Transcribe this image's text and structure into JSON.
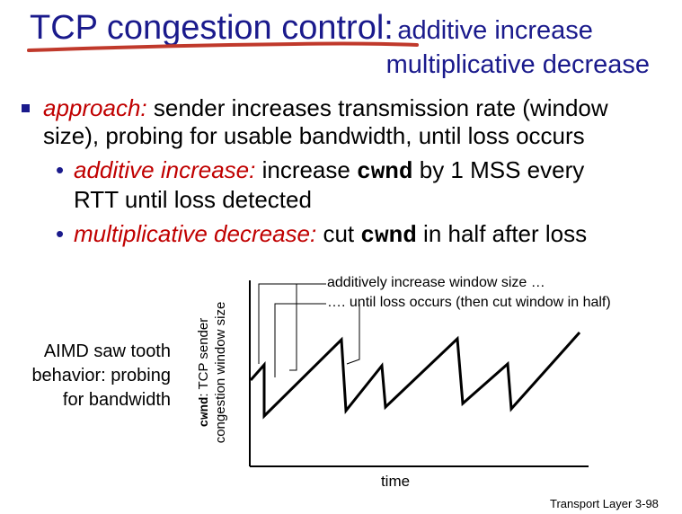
{
  "title": {
    "main": "TCP congestion control:",
    "sub_line1": "additive increase",
    "sub_line2": "multiplicative decrease"
  },
  "bullet1": {
    "label": "approach:",
    "text_line1": "sender increases transmission rate (window",
    "text_line2": "size), probing for usable bandwidth, until loss occurs"
  },
  "bullet2": {
    "label": "additive increase:",
    "pre": "increase",
    "code": "cwnd",
    "post": "by 1 MSS every",
    "line2": "RTT until loss detected"
  },
  "bullet3": {
    "label": "multiplicative decrease:",
    "pre": "cut",
    "code": "cwnd",
    "post": "in half after loss"
  },
  "diagram": {
    "side_text_line1": "AIMD saw tooth",
    "side_text_line2": "behavior: probing",
    "side_text_line3": "for bandwidth",
    "ylabel_code": "cwnd",
    "ylabel_text1": ": TCP sender",
    "ylabel_text2": "congestion window size",
    "xlabel": "time",
    "annotation1": "additively increase window size …",
    "annotation2": "…. until loss occurs (then cut window in half)"
  },
  "footer": "Transport Layer 3-98",
  "colors": {
    "title": "#1a1a8c",
    "emphasis": "#c00000",
    "underline": "#c0392b"
  }
}
